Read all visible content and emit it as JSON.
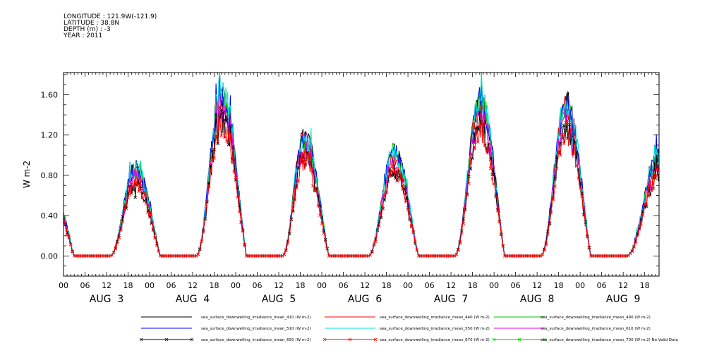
{
  "header": {
    "lines": [
      "LONGITUDE : 121.9W(-121.9)",
      "LATITUDE : 38.8N",
      "DEPTH (m) : -3",
      "YEAR : 2011"
    ]
  },
  "chart_data": {
    "type": "line",
    "title": "",
    "ylabel": "W m-2",
    "xlabel": "",
    "ylim": [
      -0.2,
      1.82
    ],
    "yticks": [
      "0.00",
      "0.40",
      "0.80",
      "1.20",
      "1.60"
    ],
    "hour_tick_labels": [
      "00",
      "06",
      "12",
      "18"
    ],
    "day_labels": [
      "AUG  3",
      "AUG  4",
      "AUG  5",
      "AUG  6",
      "AUG  7",
      "AUG  8",
      "AUG  9"
    ],
    "x_range_hours": [
      0,
      166
    ],
    "grid": false,
    "legend_position": "bottom",
    "daily_peaks": {
      "note_days": [
        "AUG  3",
        "AUG  4",
        "AUG  5",
        "AUG  6",
        "AUG  7",
        "AUG  8",
        "AUG  9"
      ],
      "peak_hour": [
        20,
        20,
        19,
        20,
        20,
        20,
        22
      ],
      "peak_value_410": [
        0.86,
        1.6,
        1.16,
        1.02,
        1.55,
        1.5,
        0.98
      ],
      "peak_value_670": [
        0.72,
        1.32,
        0.92,
        0.8,
        1.3,
        1.22,
        0.8
      ]
    },
    "series": [
      {
        "name": "sea_surface_downwelling_irradiance_mean_410 (W m-2)",
        "color": "#000000",
        "marker": "none",
        "scale": 1.0
      },
      {
        "name": "sea_surface_downwelling_irradiance_mean_440 (W m-2)",
        "color": "#ff0000",
        "marker": "none",
        "scale": 0.97
      },
      {
        "name": "sea_surface_downwelling_irradiance_mean_490 (W m-2)",
        "color": "#00c000",
        "marker": "none",
        "scale": 0.99
      },
      {
        "name": "sea_surface_downwelling_irradiance_mean_510 (W m-2)",
        "color": "#0000ff",
        "marker": "none",
        "scale": 1.0
      },
      {
        "name": "sea_surface_downwelling_irradiance_mean_550 (W m-2)",
        "color": "#00e0e0",
        "marker": "none",
        "scale": 1.01
      },
      {
        "name": "sea_surface_downwelling_irradiance_mean_610 (W m-2)",
        "color": "#e000e0",
        "marker": "none",
        "scale": 0.9
      },
      {
        "name": "sea_surface_downwelling_irradiance_mean_650 (W m-2)",
        "color": "#000000",
        "marker": "x",
        "scale": 0.83
      },
      {
        "name": "sea_surface_downwelling_irradiance_mean_670 (W m-2)",
        "color": "#ff0000",
        "marker": "x",
        "scale": 0.82
      },
      {
        "name": "sea_surface_downwelling_irradiance_mean_700 (W m-2) No Valid Data",
        "color": "#00c000",
        "marker": "x",
        "scale": 0
      }
    ]
  }
}
